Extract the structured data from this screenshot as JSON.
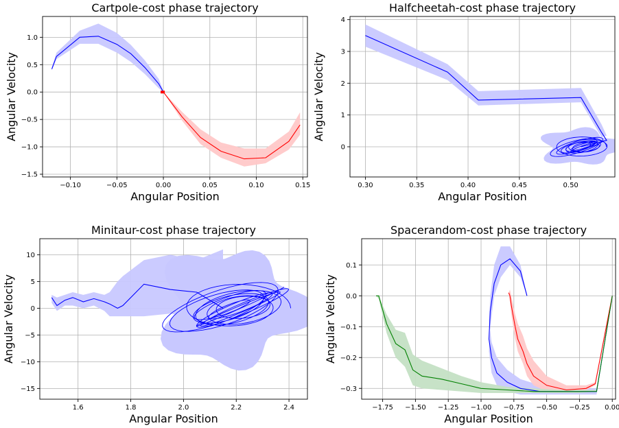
{
  "chart_data": [
    {
      "type": "line",
      "title": "Cartpole-cost phase trajectory",
      "xlabel": "Angular Position",
      "ylabel": "Angular Velocity",
      "xlim": [
        -0.13,
        0.155
      ],
      "ylim": [
        -1.55,
        1.38
      ],
      "xticks": [
        -0.1,
        -0.05,
        0.0,
        0.05,
        0.1,
        0.15
      ],
      "xtick_labels": [
        "−0.10",
        "−0.05",
        "0.00",
        "0.05",
        "0.10",
        "0.15"
      ],
      "yticks": [
        -1.5,
        -1.0,
        -0.5,
        0.0,
        0.5,
        1.0
      ],
      "ytick_labels": [
        "−1.5",
        "−1.0",
        "−0.5",
        "0.0",
        "0.5",
        "1.0"
      ],
      "grid": true,
      "series": [
        {
          "color": "#0000ff",
          "band_color": "#c8c8ff",
          "x": [
            -0.12,
            -0.115,
            -0.09,
            -0.07,
            -0.05,
            -0.035,
            -0.02,
            -0.005,
            0.0
          ],
          "y": [
            0.42,
            0.65,
            1.0,
            1.02,
            0.87,
            0.7,
            0.45,
            0.15,
            0.0
          ],
          "lower": [
            0.4,
            0.6,
            0.88,
            0.88,
            0.72,
            0.55,
            0.33,
            0.07,
            0.0
          ],
          "upper": [
            0.45,
            0.72,
            1.12,
            1.25,
            1.08,
            0.86,
            0.58,
            0.24,
            0.02
          ]
        },
        {
          "color": "#ff0000",
          "band_color": "#ffc8c8",
          "x": [
            0.0,
            0.02,
            0.04,
            0.062,
            0.087,
            0.11,
            0.135,
            0.147
          ],
          "y": [
            0.0,
            -0.45,
            -0.83,
            -1.08,
            -1.22,
            -1.2,
            -0.9,
            -0.6
          ],
          "lower": [
            0.0,
            -0.52,
            -0.95,
            -1.2,
            -1.36,
            -1.3,
            -1.05,
            -0.78
          ],
          "upper": [
            0.0,
            -0.36,
            -0.68,
            -0.92,
            -1.03,
            -1.03,
            -0.72,
            -0.37
          ]
        }
      ]
    },
    {
      "type": "line",
      "title": "Halfcheetah-cost phase trajectory",
      "xlabel": "Angular Position",
      "ylabel": "Angular Velocity",
      "xlim": [
        0.285,
        0.543
      ],
      "ylim": [
        -0.95,
        4.1
      ],
      "xticks": [
        0.3,
        0.35,
        0.4,
        0.45,
        0.5
      ],
      "xtick_labels": [
        "0.30",
        "0.35",
        "0.40",
        "0.45",
        "0.50"
      ],
      "yticks": [
        0,
        1,
        2,
        3,
        4
      ],
      "ytick_labels": [
        "0",
        "1",
        "2",
        "3",
        "4"
      ],
      "grid": true,
      "series": [
        {
          "color": "#0000ff",
          "band_color": "#c8c8ff",
          "x": [
            0.3,
            0.38,
            0.41,
            0.51,
            0.53,
            0.535,
            0.51
          ],
          "y": [
            3.5,
            2.35,
            1.47,
            1.55,
            0.45,
            0.2,
            0.0
          ],
          "lower": [
            3.15,
            2.1,
            1.3,
            1.4,
            0.3,
            0.05,
            -0.1
          ],
          "upper": [
            3.85,
            2.6,
            1.75,
            1.85,
            0.7,
            0.35,
            0.1
          ]
        }
      ],
      "cluster": {
        "cx": 0.51,
        "cy": 0.0,
        "rx": 0.02,
        "ry": 0.25,
        "band_rx": 0.038,
        "band_ry": 0.55,
        "loops": 10
      }
    },
    {
      "type": "line",
      "title": "Minitaur-cost phase trajectory",
      "xlabel": "Angular Position",
      "ylabel": "Angular Velocity",
      "xlim": [
        1.455,
        2.47
      ],
      "ylim": [
        -17.0,
        13.0
      ],
      "xticks": [
        1.6,
        1.8,
        2.0,
        2.2,
        2.4
      ],
      "xtick_labels": [
        "1.6",
        "1.8",
        "2.0",
        "2.2",
        "2.4"
      ],
      "yticks": [
        -15,
        -10,
        -5,
        0,
        5,
        10
      ],
      "ytick_labels": [
        "−15",
        "−10",
        "−5",
        "0",
        "5",
        "10"
      ],
      "grid": true,
      "series": [
        {
          "color": "#0000ff",
          "band_color": "#c8c8ff",
          "x": [
            1.5,
            1.52,
            1.55,
            1.58,
            1.62,
            1.66,
            1.7,
            1.72,
            1.75,
            1.77,
            1.85,
            1.95,
            2.05,
            2.15
          ],
          "y": [
            2.0,
            0.5,
            1.5,
            2.0,
            1.2,
            1.8,
            1.2,
            0.8,
            0.0,
            0.5,
            4.5,
            3.5,
            3.0,
            0.0
          ],
          "lower": [
            1.0,
            -0.5,
            0.5,
            0.5,
            0.0,
            0.5,
            -0.5,
            -1.5,
            -1.5,
            -1.5,
            -1.5,
            -1.0,
            -2.0,
            -5.0
          ],
          "upper": [
            2.5,
            2.0,
            2.5,
            3.0,
            2.5,
            3.0,
            2.5,
            3.0,
            5.0,
            6.0,
            9.0,
            10.0,
            9.0,
            11.0
          ]
        }
      ],
      "cluster": {
        "cx": 2.18,
        "cy": 0.0,
        "rx": 0.18,
        "ry": 4.0,
        "band_rx": 0.26,
        "band_ry": 10.5,
        "loops": 12
      }
    },
    {
      "type": "line",
      "title": "Spacerandom-cost phase trajectory",
      "xlabel": "Angular Position",
      "ylabel": "Angular Velocity",
      "xlim": [
        -1.91,
        0.025
      ],
      "ylim": [
        -0.335,
        0.185
      ],
      "xticks": [
        -1.75,
        -1.5,
        -1.25,
        -1.0,
        -0.75,
        -0.5,
        -0.25,
        0.0
      ],
      "xtick_labels": [
        "−1.75",
        "−1.50",
        "−1.25",
        "−1.00",
        "−0.75",
        "−0.50",
        "−0.25",
        "0.00"
      ],
      "yticks": [
        -0.3,
        -0.2,
        -0.1,
        0.0,
        0.1
      ],
      "ytick_labels": [
        "−0.3",
        "−0.2",
        "−0.1",
        "0.0",
        "0.1"
      ],
      "grid": true,
      "series": [
        {
          "color": "#0000ff",
          "band_color": "#c8c8ff",
          "x": [
            -0.65,
            -0.7,
            -0.78,
            -0.85,
            -0.9,
            -0.93,
            -0.94,
            -0.92,
            -0.88,
            -0.8,
            -0.7,
            -0.55,
            -0.4,
            -0.25,
            -0.12,
            0.0
          ],
          "y": [
            0.0,
            0.08,
            0.12,
            0.1,
            0.04,
            -0.05,
            -0.14,
            -0.2,
            -0.25,
            -0.28,
            -0.3,
            -0.31,
            -0.31,
            -0.31,
            -0.31,
            0.0
          ],
          "lower": [
            0.0,
            0.06,
            0.1,
            0.06,
            0.0,
            -0.1,
            -0.18,
            -0.25,
            -0.29,
            -0.31,
            -0.32,
            -0.32,
            -0.32,
            -0.32,
            -0.32,
            0.0
          ],
          "upper": [
            0.0,
            0.1,
            0.16,
            0.16,
            0.1,
            0.0,
            -0.08,
            -0.15,
            -0.2,
            -0.24,
            -0.27,
            -0.29,
            -0.3,
            -0.3,
            -0.3,
            0.0
          ]
        },
        {
          "color": "#ff0000",
          "band_color": "#ffc8c8",
          "x": [
            -0.79,
            -0.78,
            -0.77,
            -0.74,
            -0.72,
            -0.68,
            -0.65,
            -0.6,
            -0.5,
            -0.35,
            -0.2,
            -0.13,
            0.0
          ],
          "y": [
            0.01,
            0.0,
            -0.03,
            -0.1,
            -0.14,
            -0.18,
            -0.22,
            -0.26,
            -0.29,
            -0.305,
            -0.3,
            -0.285,
            0.0
          ],
          "lower": [
            0.01,
            -0.02,
            -0.06,
            -0.14,
            -0.18,
            -0.22,
            -0.26,
            -0.29,
            -0.31,
            -0.31,
            -0.305,
            -0.29,
            0.0
          ],
          "upper": [
            0.01,
            0.02,
            0.0,
            -0.06,
            -0.09,
            -0.13,
            -0.17,
            -0.21,
            -0.26,
            -0.29,
            -0.29,
            -0.28,
            0.0
          ]
        },
        {
          "color": "#008000",
          "band_color": "#c4e0c4",
          "x": [
            -1.8,
            -1.78,
            -1.72,
            -1.65,
            -1.58,
            -1.52,
            -1.45,
            -1.3,
            -1.15,
            -1.0,
            -0.8,
            -0.6,
            -0.4,
            -0.25,
            -0.12,
            0.0
          ],
          "y": [
            0.0,
            0.0,
            -0.09,
            -0.155,
            -0.175,
            -0.24,
            -0.26,
            -0.27,
            -0.285,
            -0.3,
            -0.305,
            -0.31,
            -0.31,
            -0.31,
            -0.31,
            0.0
          ],
          "lower": [
            0.0,
            -0.01,
            -0.12,
            -0.2,
            -0.23,
            -0.29,
            -0.3,
            -0.305,
            -0.31,
            -0.315,
            -0.315,
            -0.315,
            -0.315,
            -0.315,
            -0.31,
            0.0
          ],
          "upper": [
            0.0,
            0.0,
            -0.06,
            -0.11,
            -0.12,
            -0.19,
            -0.21,
            -0.235,
            -0.26,
            -0.28,
            -0.295,
            -0.3,
            -0.305,
            -0.305,
            -0.305,
            0.0
          ]
        }
      ]
    }
  ]
}
